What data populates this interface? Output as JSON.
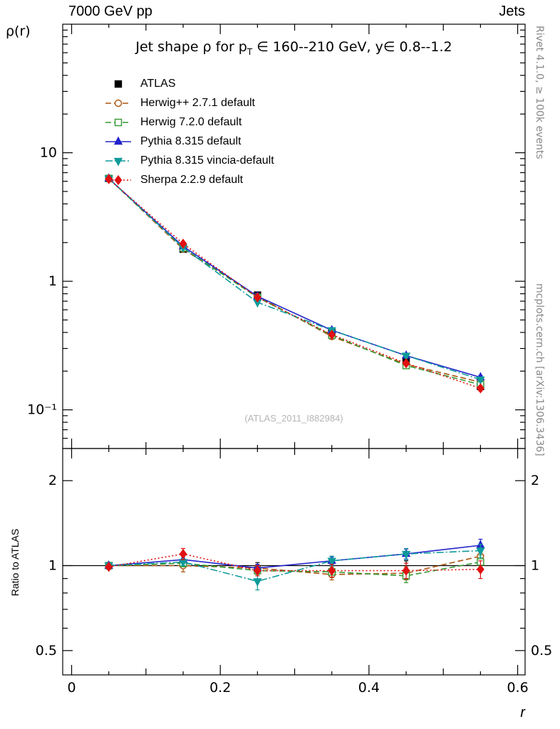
{
  "header": {
    "left": "7000 GeV pp",
    "right": "Jets"
  },
  "title": {
    "part1": "Jet shape ρ for p",
    "sub": "T",
    "part2": " ∈ 160--210 GeV, y∈ 0.8--1.2"
  },
  "watermark": "(ATLAS_2011_I882984)",
  "side_notes": {
    "top_right": "Rivet 4.1.0, ≥ 100k events",
    "bottom_right": "mcplots.cern.ch [arXiv:1306.3436]"
  },
  "chart_data": {
    "type": "line",
    "title": "Jet shape ρ for pT ∈ 160--210 GeV, y∈ 0.8--1.2",
    "x_values": [
      0.05,
      0.15,
      0.25,
      0.35,
      0.45,
      0.55
    ],
    "axes": {
      "x": {
        "min": -0.012,
        "max": 0.61,
        "label": "r",
        "major_ticks": [
          {
            "v": 0,
            "label": "0"
          },
          {
            "v": 0.2,
            "label": "0.2"
          },
          {
            "v": 0.4,
            "label": "0.4"
          },
          {
            "v": 0.6,
            "label": "0.6"
          }
        ]
      },
      "y_main": {
        "scale": "log",
        "min": 0.05,
        "max": 100,
        "ticks": [
          {
            "v": 10,
            "label": "10"
          },
          {
            "v": 1,
            "label": "1"
          },
          {
            "v": 0.1,
            "label": "10⁻¹"
          }
        ]
      },
      "y_ratio": {
        "scale": "log",
        "min": 0.41,
        "max": 2.6,
        "ticks": [
          {
            "v": 2,
            "label": "2"
          },
          {
            "v": 1,
            "label": "1"
          },
          {
            "v": 0.5,
            "label": "0.5"
          }
        ],
        "minor_ticks": [
          0.6,
          0.7,
          0.8,
          0.9
        ]
      }
    },
    "panels": {
      "main": {
        "ylabel": "ρ(r)"
      },
      "ratio": {
        "ylabel": "Ratio to ATLAS"
      }
    },
    "series": [
      {
        "name": "ATLAS",
        "kind": "data",
        "color": "#000000",
        "line": "none",
        "marker": "square-filled",
        "values": [
          6.3,
          1.78,
          0.78,
          0.4,
          0.24,
          0.152
        ],
        "yerr": [
          0.09,
          0.04,
          0.02,
          0.013,
          0.011,
          0.009
        ],
        "ratio": [
          1,
          1,
          1,
          1,
          1,
          1
        ],
        "ratio_err": [
          0.012,
          0.02,
          0.025,
          0.03,
          0.04,
          0.045
        ]
      },
      {
        "name": "Herwig++ 2.7.1 default",
        "kind": "mc",
        "color": "#aa5511",
        "line": "dashed",
        "marker": "circle-open",
        "values": [
          6.3,
          1.78,
          0.764,
          0.372,
          0.226,
          0.164
        ],
        "yerr": [
          0.04,
          0.02,
          0.01,
          0.008,
          0.007,
          0.006
        ],
        "ratio": [
          1.0,
          1.0,
          0.98,
          0.93,
          0.94,
          1.08
        ],
        "ratio_err": [
          0.015,
          0.05,
          0.03,
          0.04,
          0.05,
          0.07
        ]
      },
      {
        "name": "Herwig 7.2.0 default",
        "kind": "mc",
        "color": "#339933",
        "line": "dashed",
        "marker": "square-open",
        "values": [
          6.3,
          1.82,
          0.749,
          0.38,
          0.221,
          0.157
        ],
        "yerr": [
          0.04,
          0.02,
          0.01,
          0.008,
          0.007,
          0.006
        ],
        "ratio": [
          1.0,
          1.02,
          0.96,
          0.95,
          0.92,
          1.03
        ],
        "ratio_err": [
          0.015,
          0.03,
          0.03,
          0.04,
          0.05,
          0.06
        ]
      },
      {
        "name": "Pythia 8.315 default",
        "kind": "mc",
        "color": "#2323cc",
        "line": "solid",
        "marker": "triangle-up-filled",
        "values": [
          6.3,
          1.87,
          0.764,
          0.416,
          0.264,
          0.179
        ],
        "yerr": [
          0.04,
          0.02,
          0.01,
          0.008,
          0.007,
          0.006
        ],
        "ratio": [
          1.0,
          1.05,
          0.98,
          1.04,
          1.1,
          1.18
        ],
        "ratio_err": [
          0.015,
          0.03,
          0.03,
          0.035,
          0.045,
          0.06
        ]
      },
      {
        "name": "Pythia 8.315 vincia-default",
        "kind": "mc",
        "color": "#0f9b9b",
        "line": "dashdot",
        "marker": "triangle-down-filled",
        "values": [
          6.3,
          1.83,
          0.686,
          0.416,
          0.264,
          0.172
        ],
        "yerr": [
          0.04,
          0.02,
          0.012,
          0.009,
          0.008,
          0.007
        ],
        "ratio": [
          1.0,
          1.03,
          0.88,
          1.04,
          1.1,
          1.13
        ],
        "ratio_err": [
          0.015,
          0.03,
          0.06,
          0.04,
          0.05,
          0.06
        ]
      },
      {
        "name": "Sherpa 2.2.9 default",
        "kind": "mc",
        "color": "#e01010",
        "line": "dotted",
        "marker": "diamond-filled",
        "values": [
          6.24,
          1.96,
          0.749,
          0.384,
          0.23,
          0.147
        ],
        "yerr": [
          0.05,
          0.025,
          0.012,
          0.009,
          0.008,
          0.007
        ],
        "ratio": [
          0.99,
          1.1,
          0.96,
          0.96,
          0.96,
          0.97
        ],
        "ratio_err": [
          0.02,
          0.05,
          0.04,
          0.05,
          0.06,
          0.07
        ]
      }
    ]
  }
}
